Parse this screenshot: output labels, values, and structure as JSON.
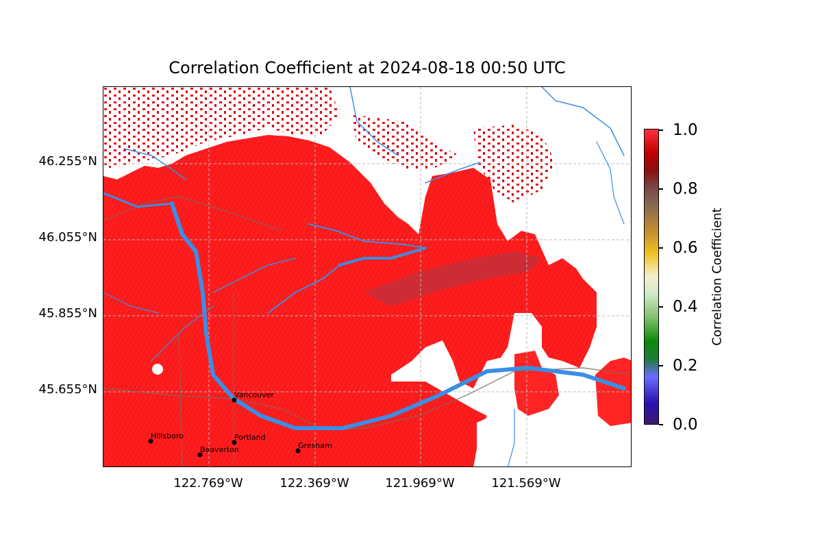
{
  "title": "Correlation Coefficient at 2024-08-18 00:50 UTC",
  "map": {
    "field": "Correlation Coefficient",
    "lon_range": [
      -122.99,
      -121.98
    ],
    "lat_range": [
      45.455,
      46.46
    ],
    "background_color": "#ffffff",
    "echo_color": "#ff2020",
    "river_color": "#3a8ee6",
    "road_color": "#7a6a5a",
    "gridlines": true
  },
  "axes": {
    "lat_ticks": [
      "46.255°N",
      "46.055°N",
      "45.855°N",
      "45.655°N"
    ],
    "lon_ticks": [
      "122.769°W",
      "122.369°W",
      "121.969°W",
      "121.569°W"
    ]
  },
  "cities": [
    {
      "name": "Vancouver",
      "lon": -122.66,
      "lat": 45.64
    },
    {
      "name": "Portland",
      "lon": -122.68,
      "lat": 45.52
    },
    {
      "name": "Hillsboro",
      "lon": -122.99,
      "lat": 45.52
    },
    {
      "name": "Beaverton",
      "lon": -122.8,
      "lat": 45.49
    },
    {
      "name": "Gresham",
      "lon": -122.43,
      "lat": 45.5
    }
  ],
  "colorbar": {
    "label": "Correlation Coefficient",
    "min": 0.0,
    "max": 1.0,
    "ticks": [
      "0.0",
      "0.2",
      "0.4",
      "0.6",
      "0.8",
      "1.0"
    ]
  }
}
